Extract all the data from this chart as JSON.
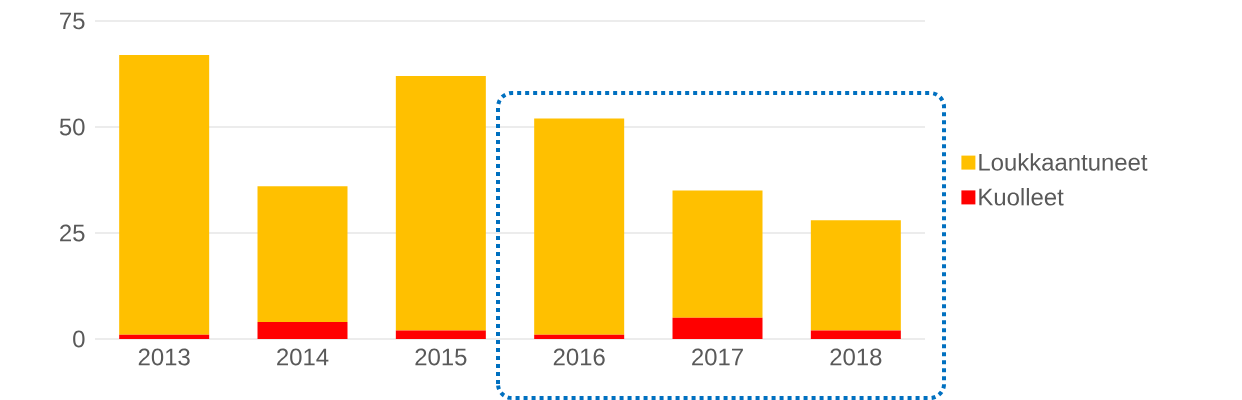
{
  "chart_data": {
    "type": "bar",
    "stacked": true,
    "categories": [
      "2013",
      "2014",
      "2015",
      "2016",
      "2017",
      "2018"
    ],
    "series": [
      {
        "name": "Kuolleet",
        "color": "#ff0000",
        "values": [
          1,
          4,
          2,
          1,
          5,
          2
        ]
      },
      {
        "name": "Loukkaantuneet",
        "color": "#ffc000",
        "values": [
          66,
          32,
          60,
          51,
          30,
          26
        ]
      }
    ],
    "ylim": [
      0,
      75
    ],
    "yticks": [
      0,
      25,
      50,
      75
    ],
    "grid": "y",
    "legend": "right"
  }
}
